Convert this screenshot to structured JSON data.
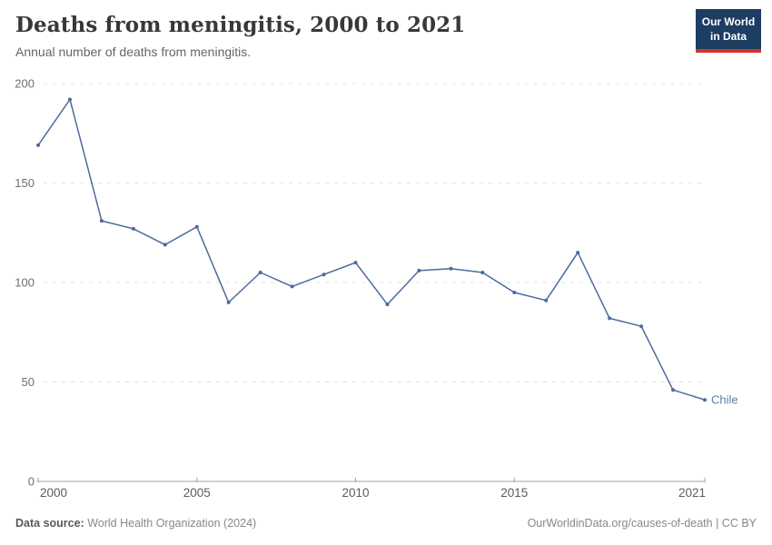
{
  "header": {
    "title": "Deaths from meningitis, 2000 to 2021",
    "subtitle": "Annual number of deaths from meningitis.",
    "logo": {
      "line1": "Our World",
      "line2": "in Data",
      "bg_color": "#1d3d63",
      "accent_color": "#d0362d"
    }
  },
  "chart_data": {
    "type": "line",
    "title": "Deaths from meningitis, 2000 to 2021",
    "subtitle": "Annual number of deaths from meningitis.",
    "entity": "Chile",
    "x": [
      2000,
      2001,
      2002,
      2003,
      2004,
      2005,
      2006,
      2007,
      2008,
      2009,
      2010,
      2011,
      2012,
      2013,
      2014,
      2015,
      2016,
      2017,
      2018,
      2019,
      2020,
      2021
    ],
    "values": [
      169,
      192,
      131,
      127,
      119,
      128,
      90,
      105,
      98,
      104,
      110,
      89,
      106,
      107,
      105,
      95,
      91,
      115,
      82,
      78,
      46,
      41
    ],
    "xlabel": "",
    "ylabel": "",
    "ylim": [
      0,
      200
    ],
    "xlim": [
      2000,
      2021
    ],
    "yticks": [
      0,
      50,
      100,
      150,
      200
    ],
    "xticks": [
      2000,
      2005,
      2010,
      2015,
      2021
    ],
    "grid": "horizontal-dashed",
    "legend_position": "end-of-line-label",
    "line_color": "#4C6A9C",
    "marker": "dot",
    "entity_label_color": "#5B7CAE",
    "grid_color": "#e2e2e2",
    "axis_color": "#a1a1a1",
    "ytick_color": "#6e6e6e",
    "xtick_color": "#5c5c5c"
  },
  "footer": {
    "source_label": "Data source:",
    "source_value": " World Health Organization (2024)",
    "attribution": "OurWorldinData.org/causes-of-death | CC BY"
  }
}
